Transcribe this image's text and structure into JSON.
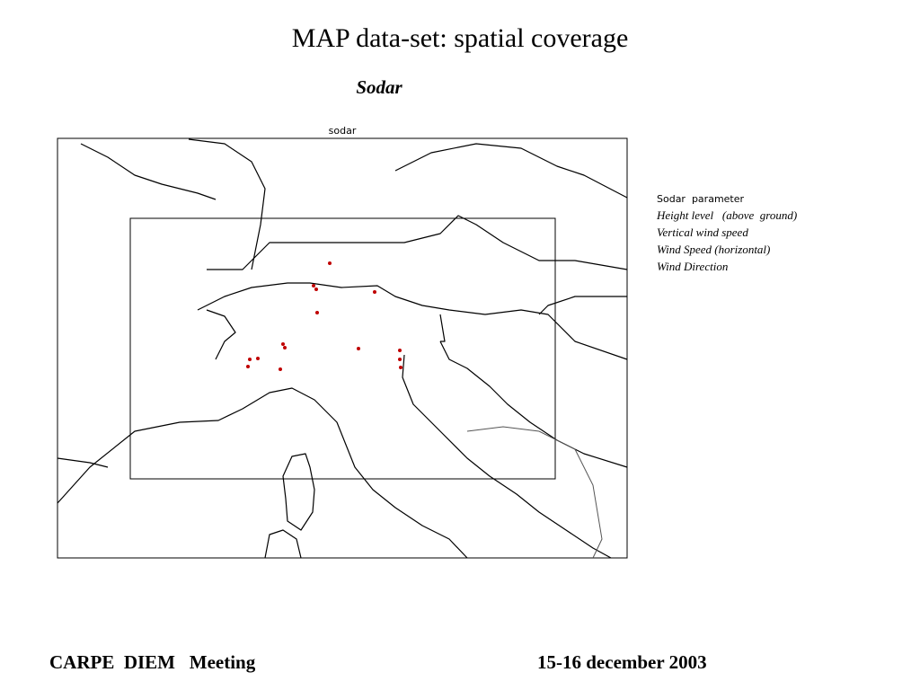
{
  "title": "MAP data-set: spatial coverage",
  "subtitle": "Sodar",
  "map": {
    "title": "sodar"
  },
  "legend": {
    "header": "Sodar  parameter",
    "items": [
      "Height level   (above  ground)",
      "Vertical wind speed",
      "Wind Speed (horizontal)",
      "Wind Direction"
    ]
  },
  "footer": {
    "left": "CARPE  DIEM   Meeting",
    "right": "15-16 december 2003"
  }
}
